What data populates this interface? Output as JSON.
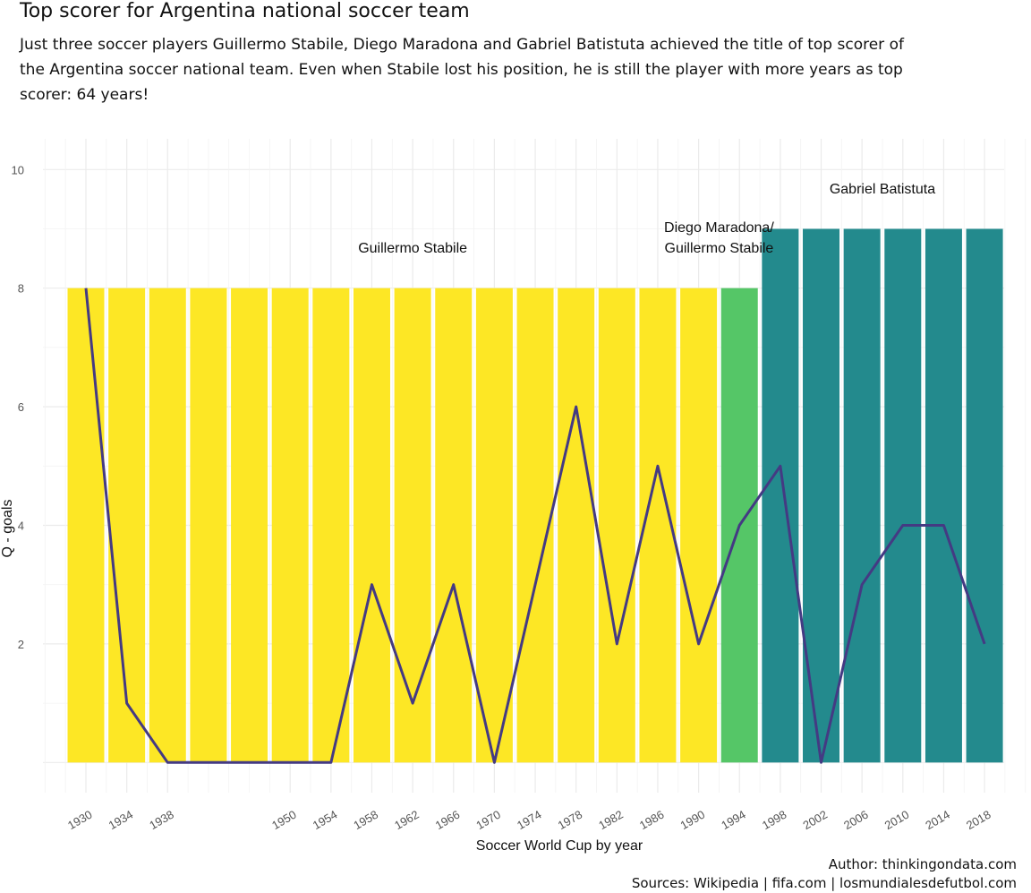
{
  "title": "Top scorer for Argentina national soccer team",
  "subtitle": "Just three soccer players Guillermo Stabile, Diego Maradona and Gabriel Batistuta achieved the title of top scorer of the Argentina soccer national team. Even when Stabile lost his position, he is still the player with more years as top scorer: 64 years!",
  "caption": {
    "author": "Author: thinkingondata.com",
    "sources": "Sources: Wikipedia | fifa.com | losmundialesdefutbol.com"
  },
  "chart_data": {
    "type": "bar+line",
    "xlabel": "Soccer World Cup by year",
    "ylabel": "Q - goals",
    "ylim": [
      0,
      10
    ],
    "yticks": [
      2,
      4,
      6,
      8,
      10
    ],
    "xticks": [
      1930,
      1934,
      1938,
      1950,
      1954,
      1958,
      1962,
      1966,
      1970,
      1974,
      1978,
      1982,
      1986,
      1990,
      1994,
      1998,
      2002,
      2006,
      2010,
      2014,
      2018
    ],
    "grid": true,
    "bars": {
      "years": [
        1930,
        1934,
        1938,
        1942,
        1946,
        1950,
        1954,
        1958,
        1962,
        1966,
        1970,
        1974,
        1978,
        1982,
        1986,
        1990,
        1994,
        1998,
        2002,
        2006,
        2010,
        2014,
        2018
      ],
      "values": [
        8,
        8,
        8,
        8,
        8,
        8,
        8,
        8,
        8,
        8,
        8,
        8,
        8,
        8,
        8,
        8,
        8,
        9,
        9,
        9,
        9,
        9,
        9
      ],
      "groups": [
        "Stabile",
        "Stabile",
        "Stabile",
        "Stabile",
        "Stabile",
        "Stabile",
        "Stabile",
        "Stabile",
        "Stabile",
        "Stabile",
        "Stabile",
        "Stabile",
        "Stabile",
        "Stabile",
        "Stabile",
        "Stabile",
        "Both",
        "Batistuta",
        "Batistuta",
        "Batistuta",
        "Batistuta",
        "Batistuta",
        "Batistuta"
      ]
    },
    "group_colors": {
      "Stabile": "#fde725",
      "Both": "#55c667",
      "Batistuta": "#238a8d"
    },
    "line": {
      "color": "#443a83",
      "years": [
        1930,
        1934,
        1938,
        1950,
        1954,
        1958,
        1962,
        1966,
        1970,
        1974,
        1978,
        1982,
        1986,
        1990,
        1994,
        1998,
        2002,
        2006,
        2010,
        2014,
        2018
      ],
      "values": [
        8,
        1,
        0,
        0,
        0,
        3,
        1,
        3,
        0,
        3,
        6,
        2,
        5,
        2,
        4,
        5,
        0,
        3,
        4,
        4,
        2
      ]
    },
    "annotations": [
      {
        "lines": [
          "Guillermo Stabile"
        ],
        "year": 1962,
        "y": 8.6
      },
      {
        "lines": [
          "Diego Maradona/",
          "Guillermo Stabile"
        ],
        "year": 1992,
        "y": 8.6
      },
      {
        "lines": [
          "Gabriel Batistuta"
        ],
        "year": 2008,
        "y": 9.6
      }
    ]
  }
}
